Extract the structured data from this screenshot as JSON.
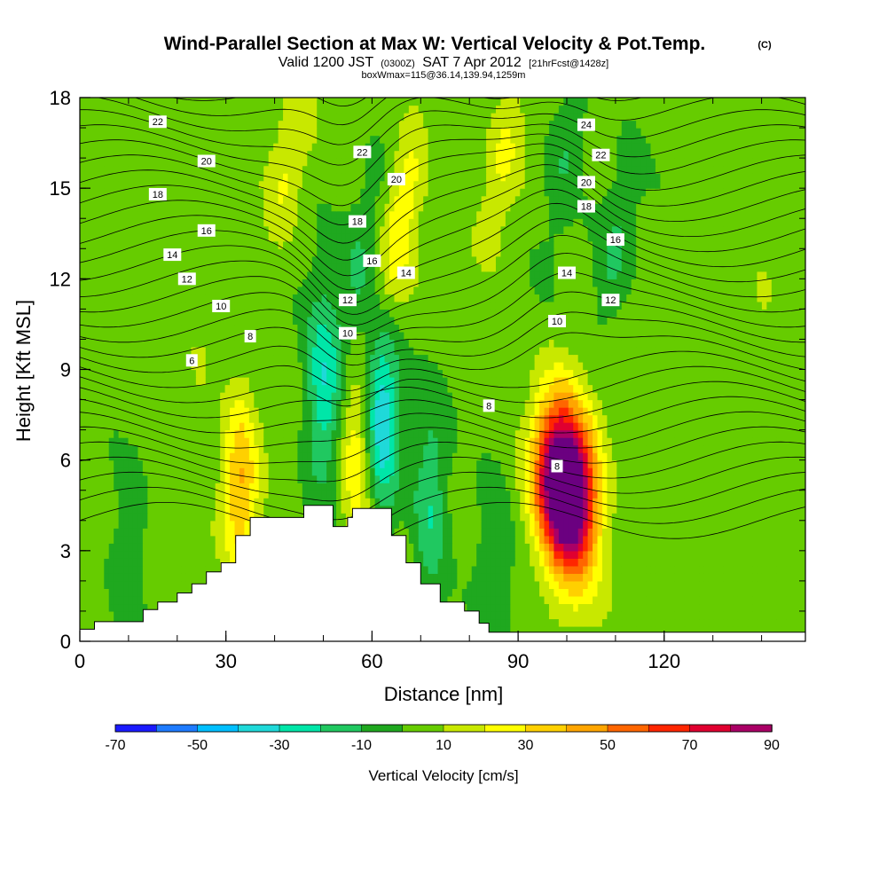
{
  "titles": {
    "main": "Wind-Parallel Section at Max W: Vertical Velocity & Pot.Temp.",
    "copyright": "(C)",
    "valid_a": "Valid 1200 JST",
    "valid_utc": "(0300Z)",
    "valid_b": "SAT 7 Apr 2012",
    "forecast": "[21hrFcst@1428z]",
    "box": "boxWmax=115@36.14,139.94,1259m"
  },
  "chart_data": {
    "type": "heatmap",
    "xlabel": "Distance [nm]",
    "ylabel": "Height [Kft MSL]",
    "xlim": [
      0,
      149
    ],
    "ylim": [
      0,
      18
    ],
    "x_ticks": [
      0,
      30,
      60,
      90,
      120
    ],
    "y_ticks": [
      0,
      3,
      6,
      9,
      12,
      15,
      18
    ],
    "colorbar": {
      "title": "Vertical Velocity [cm/s]",
      "levels": [
        -70,
        -60,
        -50,
        -40,
        -30,
        -20,
        -10,
        0,
        10,
        20,
        30,
        40,
        50,
        60,
        70,
        80,
        90
      ],
      "tick_labels": [
        -70,
        -50,
        -30,
        -10,
        10,
        30,
        50,
        70,
        90
      ],
      "colors": [
        "#1a1aff",
        "#1e7bff",
        "#00bfff",
        "#1fd9d9",
        "#00e6a8",
        "#20c860",
        "#1fa81f",
        "#66cc00",
        "#c8e800",
        "#ffff00",
        "#ffd000",
        "#ffa500",
        "#ff6600",
        "#ff2600",
        "#e00030",
        "#aa0066",
        "#6b0080"
      ]
    },
    "velocity_cores": [
      {
        "x": 98,
        "y": 5.5,
        "w_peak": 90
      },
      {
        "x": 102,
        "y": 4.5,
        "w_peak": 80
      },
      {
        "x": 57,
        "y": 6.0,
        "w_peak": 30
      },
      {
        "x": 33,
        "y": 5.0,
        "w_peak": 40
      },
      {
        "x": 66,
        "y": 14.0,
        "w_peak": 30
      },
      {
        "x": 43,
        "y": 16.0,
        "w_peak": 20
      },
      {
        "x": 87,
        "y": 16.0,
        "w_peak": 20
      },
      {
        "x": 50,
        "y": 8.5,
        "w_peak": -30
      },
      {
        "x": 62,
        "y": 7.5,
        "w_peak": -40
      },
      {
        "x": 57,
        "y": 12.0,
        "w_peak": -10
      },
      {
        "x": 72,
        "y": 4.5,
        "w_peak": -20
      },
      {
        "x": 85,
        "y": 3.0,
        "w_peak": -10
      },
      {
        "x": 100,
        "y": 16.5,
        "w_peak": -10
      },
      {
        "x": 110,
        "y": 13.0,
        "w_peak": -10
      },
      {
        "x": 10,
        "y": 2.0,
        "w_peak": -10
      },
      {
        "x": 25,
        "y": 9.5,
        "w_peak": 10
      },
      {
        "x": 140,
        "y": 11.0,
        "w_peak": 10
      }
    ],
    "terrain": [
      [
        0,
        0.4
      ],
      [
        3,
        0.65
      ],
      [
        13,
        1.05
      ],
      [
        16,
        1.3
      ],
      [
        20,
        1.6
      ],
      [
        23,
        1.9
      ],
      [
        26,
        2.3
      ],
      [
        29,
        2.6
      ],
      [
        32,
        3.5
      ],
      [
        35,
        4.1
      ],
      [
        45,
        4.1
      ],
      [
        46,
        4.5
      ],
      [
        52,
        4.5
      ],
      [
        52,
        3.8
      ],
      [
        55,
        4.1
      ],
      [
        56,
        4.4
      ],
      [
        64,
        4.4
      ],
      [
        64,
        3.5
      ],
      [
        67,
        2.6
      ],
      [
        70,
        1.9
      ],
      [
        74,
        1.3
      ],
      [
        79,
        1.0
      ],
      [
        82,
        0.6
      ],
      [
        84,
        0.3
      ],
      [
        149,
        0.3
      ]
    ],
    "theta_contour_labels": [
      {
        "text": "22",
        "x": 16,
        "y": 17.2
      },
      {
        "text": "20",
        "x": 26,
        "y": 15.9
      },
      {
        "text": "18",
        "x": 16,
        "y": 14.8
      },
      {
        "text": "16",
        "x": 26,
        "y": 13.6
      },
      {
        "text": "14",
        "x": 19,
        "y": 12.8
      },
      {
        "text": "12",
        "x": 22,
        "y": 12.0
      },
      {
        "text": "10",
        "x": 29,
        "y": 11.1
      },
      {
        "text": "8",
        "x": 35,
        "y": 10.1
      },
      {
        "text": "6",
        "x": 23,
        "y": 9.3
      },
      {
        "text": "22",
        "x": 58,
        "y": 16.2
      },
      {
        "text": "20",
        "x": 65,
        "y": 15.3
      },
      {
        "text": "18",
        "x": 57,
        "y": 13.9
      },
      {
        "text": "16",
        "x": 60,
        "y": 12.6
      },
      {
        "text": "14",
        "x": 67,
        "y": 12.2
      },
      {
        "text": "12",
        "x": 55,
        "y": 11.3
      },
      {
        "text": "10",
        "x": 55,
        "y": 10.2
      },
      {
        "text": "8",
        "x": 84,
        "y": 7.8
      },
      {
        "text": "8",
        "x": 98,
        "y": 5.8
      },
      {
        "text": "24",
        "x": 104,
        "y": 17.1
      },
      {
        "text": "22",
        "x": 107,
        "y": 16.1
      },
      {
        "text": "20",
        "x": 104,
        "y": 15.2
      },
      {
        "text": "18",
        "x": 104,
        "y": 14.4
      },
      {
        "text": "16",
        "x": 110,
        "y": 13.3
      },
      {
        "text": "14",
        "x": 100,
        "y": 12.2
      },
      {
        "text": "12",
        "x": 109,
        "y": 11.3
      },
      {
        "text": "10",
        "x": 98,
        "y": 10.6
      }
    ]
  }
}
